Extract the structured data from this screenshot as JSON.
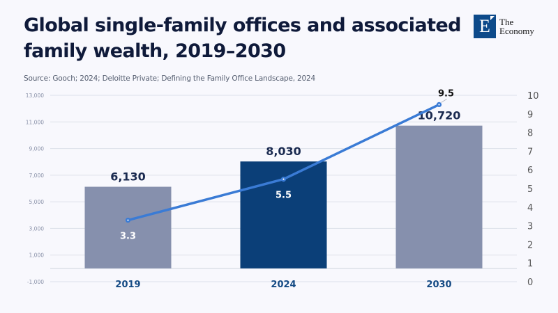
{
  "header": {
    "title_line1": "Global single-family offices and associated",
    "title_line2": "family wealth, 2019–2030",
    "source": "Source: Gooch; 2024; Deloitte Private; Defining the Family Office Landscape, 2024"
  },
  "logo": {
    "letter": "E",
    "line1": "The",
    "line2": "Economy",
    "color": "#0d4a8a"
  },
  "chart_data": {
    "type": "bar+line",
    "title": "Global single-family offices and associated family wealth, 2019–2030",
    "categories": [
      "2019",
      "2024",
      "2030"
    ],
    "series": [
      {
        "name": "Single-family offices",
        "type": "bar",
        "axis": "left",
        "values": [
          6130,
          8030,
          10720
        ],
        "labels": [
          "6,130",
          "8,030",
          "10,720"
        ],
        "colors": [
          "#8690ad",
          "#0b3f78",
          "#8690ad"
        ]
      },
      {
        "name": "Family wealth",
        "type": "line",
        "axis": "right",
        "values": [
          3.3,
          5.5,
          9.5
        ],
        "labels": [
          "3.3",
          "5.5",
          "9.5"
        ],
        "color": "#3a7bd5"
      }
    ],
    "y_left": {
      "range": [
        -1000,
        13000
      ],
      "ticks": [
        -1000,
        1000,
        3000,
        5000,
        7000,
        9000,
        11000,
        13000
      ],
      "tick_labels": [
        "-1,000",
        "1,000",
        "3,000",
        "5,000",
        "7,000",
        "9,000",
        "11,000",
        "13,000"
      ]
    },
    "y_right": {
      "range": [
        0,
        10
      ],
      "ticks": [
        0,
        1,
        2,
        3,
        4,
        5,
        6,
        7,
        8,
        9,
        10
      ],
      "tick_labels": [
        "0",
        "1",
        "2",
        "3",
        "4",
        "5",
        "6",
        "7",
        "8",
        "9",
        "10"
      ]
    },
    "grid": true,
    "legend": "none"
  }
}
